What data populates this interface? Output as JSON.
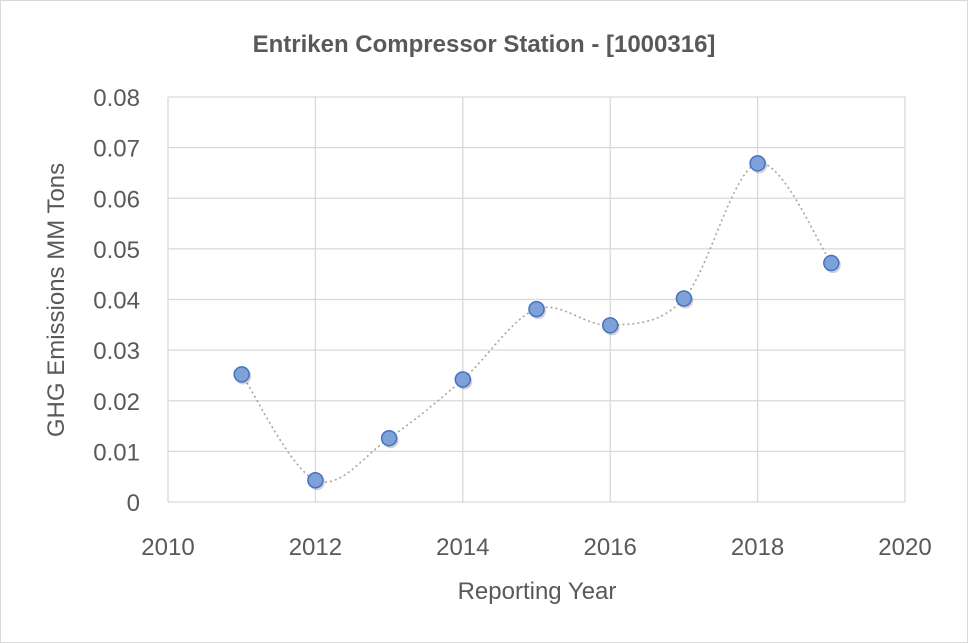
{
  "chart_data": {
    "type": "scatter",
    "title": "Entriken Compressor Station - [1000316]",
    "xlabel": "Reporting Year",
    "ylabel": "GHG Emissions MM Tons",
    "xlim": [
      2010,
      2020
    ],
    "ylim": [
      0,
      0.08
    ],
    "x_ticks": [
      "2010",
      "2012",
      "2014",
      "2016",
      "2018",
      "2020"
    ],
    "y_ticks": [
      "0",
      "0.01",
      "0.02",
      "0.03",
      "0.04",
      "0.05",
      "0.06",
      "0.07",
      "0.08"
    ],
    "grid": true,
    "smoothed_line": true,
    "marker_color": "#7ea1d8",
    "marker_edge_color": "#4472c4",
    "line_color": "#a6a6a6",
    "series": [
      {
        "x": [
          2011,
          2012,
          2013,
          2014,
          2015,
          2016,
          2017,
          2018,
          2019
        ],
        "y": [
          0.0252,
          0.0043,
          0.0126,
          0.0242,
          0.0381,
          0.0349,
          0.0402,
          0.0669,
          0.0472
        ]
      }
    ]
  }
}
